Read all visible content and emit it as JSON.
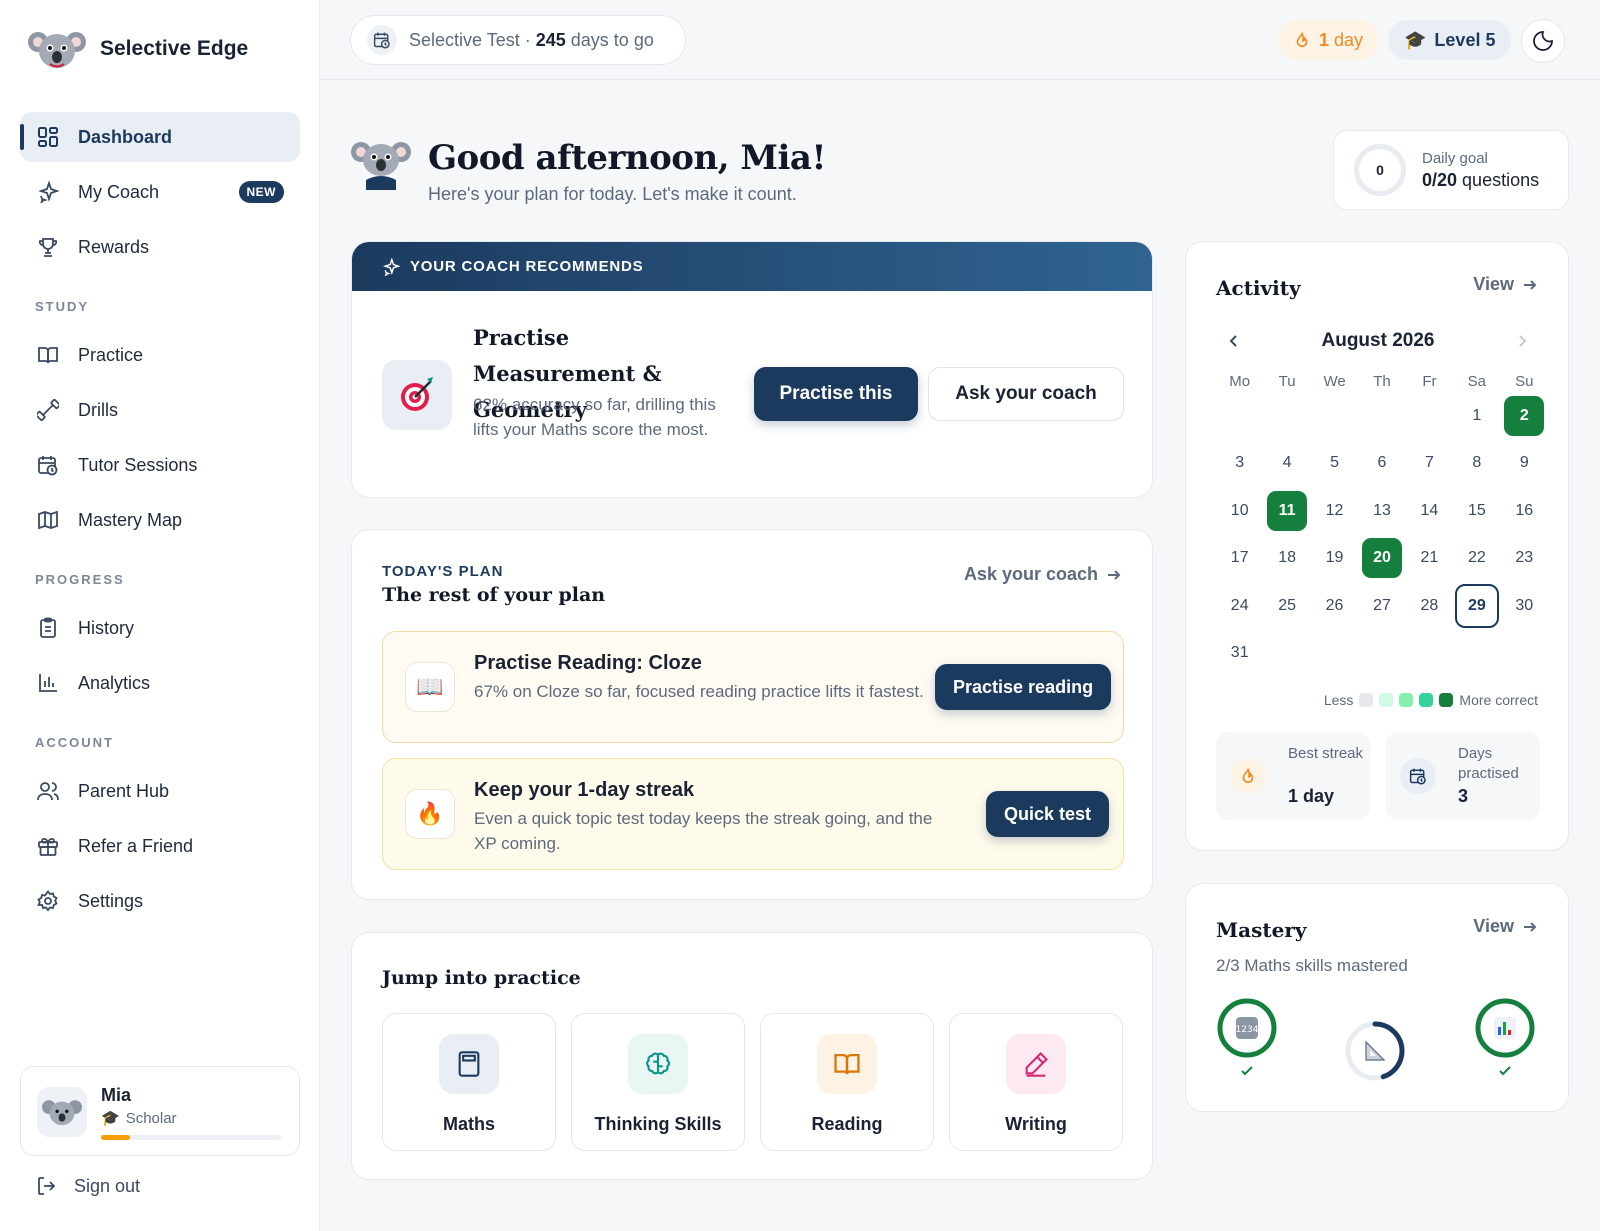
{
  "brand": {
    "name": "Selective Edge"
  },
  "sidebar": {
    "items": [
      {
        "label": "Dashboard",
        "icon": "dashboard-icon",
        "active": true
      },
      {
        "label": "My Coach",
        "icon": "sparkles-icon",
        "badge": "NEW"
      },
      {
        "label": "Rewards",
        "icon": "trophy-icon"
      }
    ],
    "study_label": "STUDY",
    "study_items": [
      {
        "label": "Practice",
        "icon": "book-icon"
      },
      {
        "label": "Drills",
        "icon": "dumbbell-icon"
      },
      {
        "label": "Tutor Sessions",
        "icon": "calendar-clock-icon"
      },
      {
        "label": "Mastery Map",
        "icon": "map-icon"
      }
    ],
    "progress_label": "PROGRESS",
    "progress_items": [
      {
        "label": "History",
        "icon": "clipboard-icon"
      },
      {
        "label": "Analytics",
        "icon": "bar-chart-icon"
      }
    ],
    "account_label": "ACCOUNT",
    "account_items": [
      {
        "label": "Parent Hub",
        "icon": "users-icon"
      },
      {
        "label": "Refer a Friend",
        "icon": "gift-icon"
      },
      {
        "label": "Settings",
        "icon": "gear-icon"
      }
    ],
    "profile": {
      "name": "Mia",
      "rank": "Scholar",
      "xp_progress": 0.16
    },
    "sign_out": "Sign out"
  },
  "topbar": {
    "countdown_prefix": "Selective Test · ",
    "countdown_days": "245",
    "countdown_suffix": " days to go",
    "streak_count": "1",
    "streak_unit": " day",
    "level": "Level 5"
  },
  "greeting": {
    "title": "Good afternoon, Mia!",
    "subtitle": "Here's your plan for today. Let's make it count."
  },
  "daily_goal": {
    "ring_value": "0",
    "label": "Daily goal",
    "value": "0/20",
    "unit": " questions"
  },
  "coach": {
    "header": "YOUR COACH RECOMMENDS",
    "title": "Practise Measurement & Geometry",
    "description": "62% accuracy so far, drilling this lifts your Maths score the most.",
    "primary_button": "Practise this",
    "secondary_button": "Ask your coach"
  },
  "plan": {
    "label": "TODAY'S PLAN",
    "title": "The rest of your plan",
    "ask_link": "Ask your coach",
    "tasks": [
      {
        "title": "Practise Reading: Cloze",
        "description": "67% on Cloze so far, focused reading practice lifts it fastest.",
        "button": "Practise reading"
      },
      {
        "title": "Keep your 1-day streak",
        "description": "Even a quick topic test today keeps the streak going, and the XP coming.",
        "button": "Quick test"
      }
    ]
  },
  "jump": {
    "title": "Jump into practice",
    "tiles": [
      {
        "label": "Maths",
        "icon": "calculator-icon",
        "color": "#1c3a5e",
        "bg": "#e9eef5"
      },
      {
        "label": "Thinking Skills",
        "icon": "brain-icon",
        "color": "#0d9488",
        "bg": "#e8f7f4"
      },
      {
        "label": "Reading",
        "icon": "open-book-icon",
        "color": "#d97706",
        "bg": "#fdf2e3"
      },
      {
        "label": "Writing",
        "icon": "pen-icon",
        "color": "#db2777",
        "bg": "#fde9f1"
      }
    ]
  },
  "activity": {
    "title": "Activity",
    "view_link": "View",
    "month": "August 2026",
    "weekdays": [
      "Mo",
      "Tu",
      "We",
      "Th",
      "Fr",
      "Sa",
      "Su"
    ],
    "first_weekday_offset": 5,
    "days_in_month": 31,
    "active_days": [
      2,
      11,
      20
    ],
    "today": 29,
    "legend_less": "Less",
    "legend_more": "More correct",
    "legend_colors": [
      "#e5e7eb",
      "#d1fae5",
      "#86efac",
      "#34d399",
      "#15803d"
    ],
    "best_streak_label": "Best streak",
    "best_streak_value": "1 day",
    "days_practised_label": "Days practised",
    "days_practised_value": "3"
  },
  "mastery": {
    "title": "Mastery",
    "view_link": "View",
    "subtitle": "2/3 Maths skills mastered",
    "skills": [
      {
        "icon": "numbers-icon",
        "mastered": true,
        "progress": 1.0
      },
      {
        "icon": "set-square-icon",
        "mastered": false,
        "progress": 0.45
      },
      {
        "icon": "chart-icon",
        "mastered": true,
        "progress": 1.0
      }
    ]
  },
  "colors": {
    "accent": "#1c3a5e",
    "success": "#15803d",
    "streak": "#f08a24"
  }
}
